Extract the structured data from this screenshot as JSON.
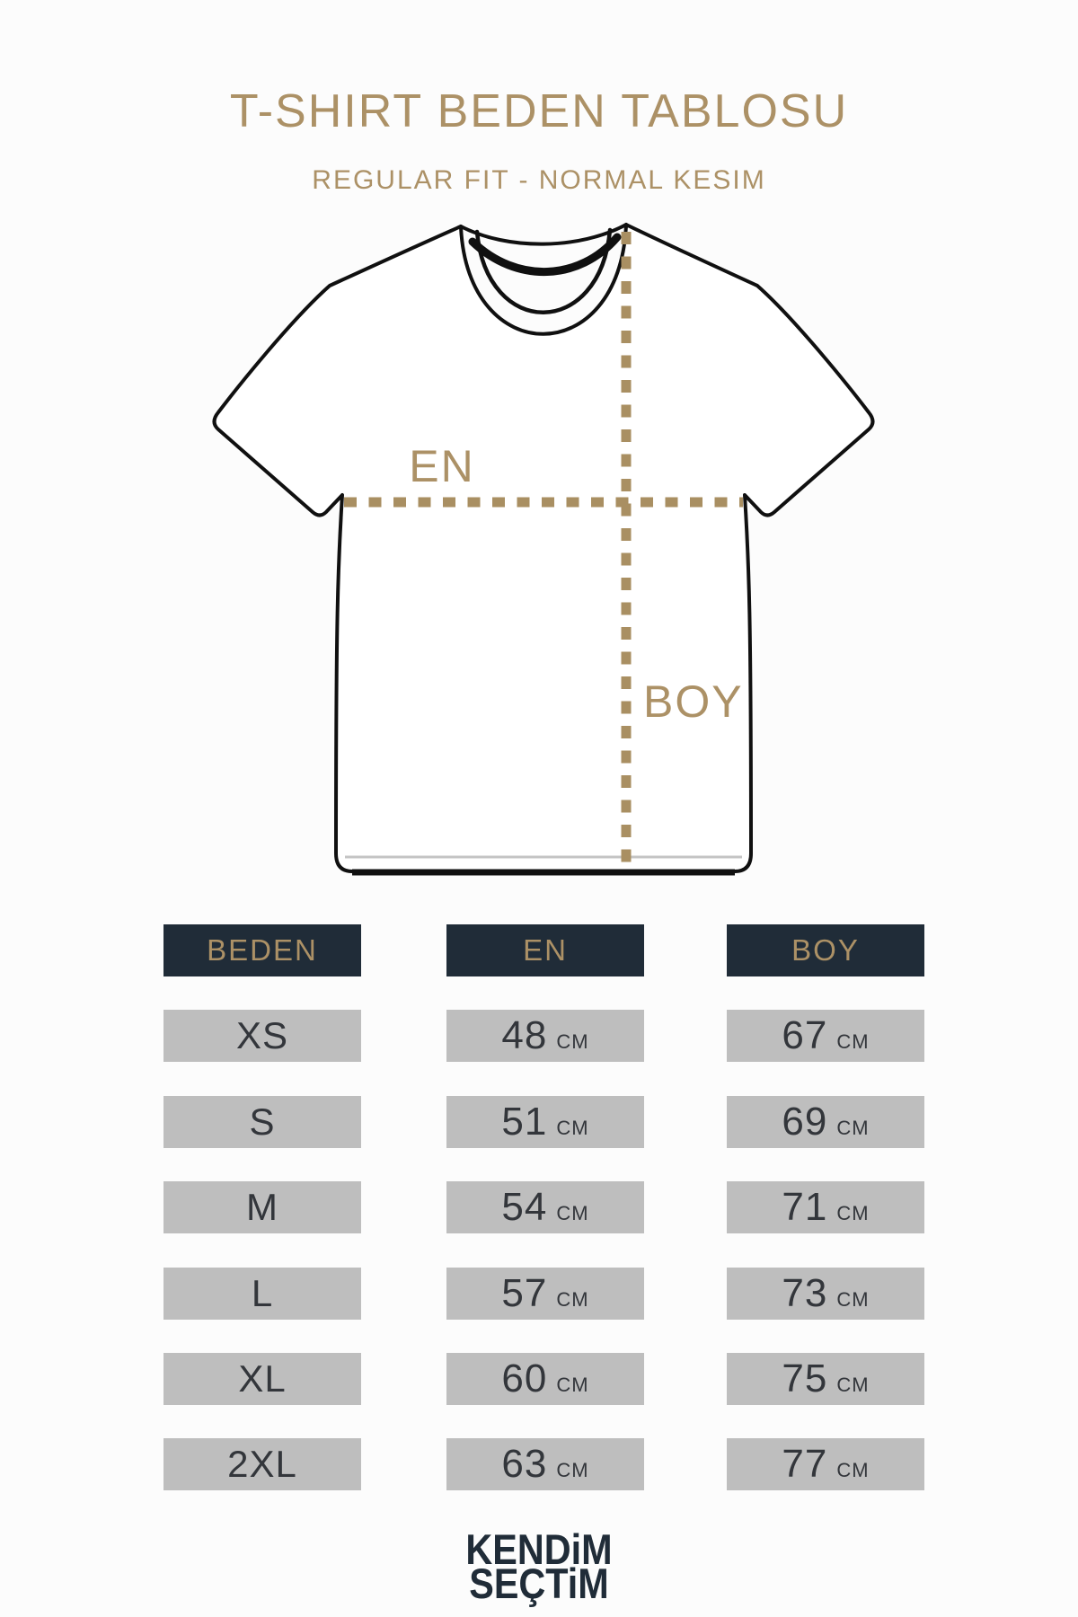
{
  "theme": {
    "bg": "#fcfcfc",
    "gold": "#ac9166",
    "golddash": "#a98f62",
    "navy": "#202c38",
    "gray": "#bebebe",
    "ink": "#33363b",
    "outline": "#101010"
  },
  "header": {
    "title": "T-SHIRT BEDEN TABLOSU",
    "subtitle": "REGULAR FIT - NORMAL KESIM"
  },
  "diagram": {
    "width_label": "EN",
    "length_label": "BOY"
  },
  "table": {
    "columns": [
      {
        "key": "beden",
        "label": "BEDEN"
      },
      {
        "key": "en",
        "label": "EN"
      },
      {
        "key": "boy",
        "label": "BOY"
      }
    ],
    "unit": "CM",
    "rows": [
      {
        "beden": "XS",
        "en": "48",
        "boy": "67"
      },
      {
        "beden": "S",
        "en": "51",
        "boy": "69"
      },
      {
        "beden": "M",
        "en": "54",
        "boy": "71"
      },
      {
        "beden": "L",
        "en": "57",
        "boy": "73"
      },
      {
        "beden": "XL",
        "en": "60",
        "boy": "75"
      },
      {
        "beden": "2XL",
        "en": "63",
        "boy": "77"
      }
    ]
  },
  "footer": {
    "brand_line1": "KENDiM",
    "brand_line2": "SEÇTiM"
  }
}
